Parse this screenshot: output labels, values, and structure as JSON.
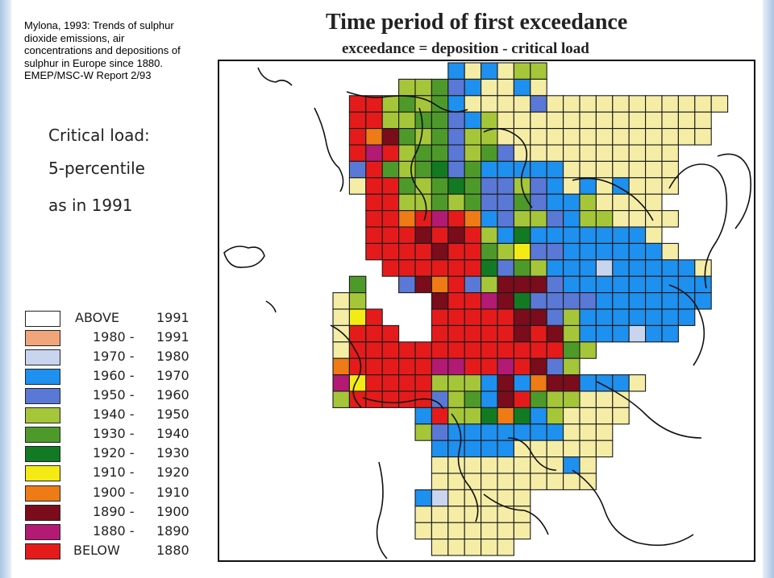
{
  "citation": {
    "lines": [
      "Mylona, 1993: Trends of sulphur",
      "dioxide emissions, air",
      "concentrations and depositions of",
      "sulphur in Europe since 1880.",
      "EMEP/MSC-W Report 2/93"
    ]
  },
  "critical_load": {
    "line1": "Critical load:",
    "line2": "5-percentile",
    "line3": "as in 1991"
  },
  "map": {
    "title": "Time period of first exceedance",
    "subtitle": "exceedance = deposition - critical load"
  },
  "legend": [
    {
      "key": "above",
      "a": "ABOVE",
      "b": "1991",
      "color": "#ffffff"
    },
    {
      "key": "p1980",
      "a": "1980 -",
      "b": "1991",
      "color": "#f0a57a"
    },
    {
      "key": "p1970",
      "a": "1970 -",
      "b": "1980",
      "color": "#c9d4ee"
    },
    {
      "key": "p1960",
      "a": "1960 -",
      "b": "1970",
      "color": "#1e90ef"
    },
    {
      "key": "p1950",
      "a": "1950 -",
      "b": "1960",
      "color": "#5a78d6"
    },
    {
      "key": "p1940",
      "a": "1940 -",
      "b": "1950",
      "color": "#a6c63a"
    },
    {
      "key": "p1930",
      "a": "1930 -",
      "b": "1940",
      "color": "#4d9a2a"
    },
    {
      "key": "p1920",
      "a": "1920 -",
      "b": "1930",
      "color": "#127a22"
    },
    {
      "key": "p1910",
      "a": "1910 -",
      "b": "1920",
      "color": "#f4ea14"
    },
    {
      "key": "p1900",
      "a": "1900 -",
      "b": "1910",
      "color": "#ee7b16"
    },
    {
      "key": "p1890",
      "a": "1890 -",
      "b": "1900",
      "color": "#7a0c1c"
    },
    {
      "key": "p1880",
      "a": "1880 -",
      "b": "1890",
      "color": "#b21a74"
    },
    {
      "key": "below",
      "a": "BELOW",
      "b": "1880",
      "color": "#e51b1b"
    }
  ],
  "grid_default_color": "#f5eda6"
}
